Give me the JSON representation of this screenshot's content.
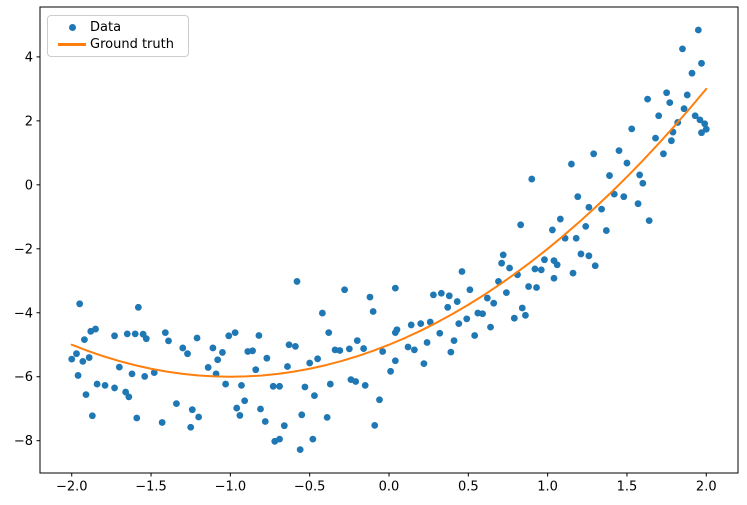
{
  "figure": {
    "background": "#ffffff",
    "frame_color": "#000000"
  },
  "legend": {
    "position": "upper left",
    "items": [
      {
        "label": "Data",
        "marker": "dot",
        "color": "#1f77b4"
      },
      {
        "label": "Ground truth",
        "marker": "line",
        "color": "#ff7f0e"
      }
    ]
  },
  "chart_data": {
    "type": "scatter",
    "title": "",
    "xlabel": "",
    "ylabel": "",
    "grid": false,
    "legend_position": "upper left",
    "xlim": [
      -2.2,
      2.2
    ],
    "ylim": [
      -9.01,
      5.56
    ],
    "xticks": {
      "values": [
        -2.0,
        -1.5,
        -1.0,
        -0.5,
        0.0,
        0.5,
        1.0,
        1.5,
        2.0
      ],
      "labels": [
        "−2.0",
        "−1.5",
        "−1.0",
        "−0.5",
        "0.0",
        "0.5",
        "1.0",
        "1.5",
        "2.0"
      ]
    },
    "yticks": {
      "values": [
        -8,
        -6,
        -4,
        -2,
        0,
        2,
        4
      ],
      "labels": [
        "−8",
        "−6",
        "−4",
        "−2",
        "0",
        "2",
        "4"
      ]
    },
    "series": [
      {
        "name": "Data",
        "type": "scatter",
        "color": "#1f77b4",
        "marker_radius": 3.4,
        "points": [
          [
            -2.0,
            -5.45
          ],
          [
            -1.97,
            -5.28
          ],
          [
            -1.96,
            -5.96
          ],
          [
            -1.95,
            -3.72
          ],
          [
            -1.93,
            -5.52
          ],
          [
            -1.92,
            -4.84
          ],
          [
            -1.91,
            -6.56
          ],
          [
            -1.89,
            -5.4
          ],
          [
            -1.88,
            -4.58
          ],
          [
            -1.87,
            -7.22
          ],
          [
            -1.85,
            -4.51
          ],
          [
            -1.84,
            -6.23
          ],
          [
            -1.79,
            -6.27
          ],
          [
            -1.73,
            -4.72
          ],
          [
            -1.73,
            -6.35
          ],
          [
            -1.7,
            -5.7
          ],
          [
            -1.66,
            -6.48
          ],
          [
            -1.65,
            -4.66
          ],
          [
            -1.64,
            -6.63
          ],
          [
            -1.62,
            -5.91
          ],
          [
            -1.6,
            -4.66
          ],
          [
            -1.59,
            -7.29
          ],
          [
            -1.58,
            -3.83
          ],
          [
            -1.55,
            -4.67
          ],
          [
            -1.54,
            -5.99
          ],
          [
            -1.53,
            -4.81
          ],
          [
            -1.48,
            -5.87
          ],
          [
            -1.43,
            -7.43
          ],
          [
            -1.41,
            -4.62
          ],
          [
            -1.39,
            -4.88
          ],
          [
            -1.34,
            -6.84
          ],
          [
            -1.3,
            -5.1
          ],
          [
            -1.27,
            -5.28
          ],
          [
            -1.25,
            -7.58
          ],
          [
            -1.24,
            -7.03
          ],
          [
            -1.21,
            -4.79
          ],
          [
            -1.2,
            -7.26
          ],
          [
            -1.14,
            -5.71
          ],
          [
            -1.11,
            -5.1
          ],
          [
            -1.09,
            -5.91
          ],
          [
            -1.08,
            -5.47
          ],
          [
            -1.05,
            -5.24
          ],
          [
            -1.03,
            -6.23
          ],
          [
            -1.01,
            -4.72
          ],
          [
            -0.97,
            -4.62
          ],
          [
            -0.96,
            -6.98
          ],
          [
            -0.94,
            -7.21
          ],
          [
            -0.93,
            -6.27
          ],
          [
            -0.91,
            -6.75
          ],
          [
            -0.89,
            -5.21
          ],
          [
            -0.86,
            -5.19
          ],
          [
            -0.84,
            -5.78
          ],
          [
            -0.82,
            -4.71
          ],
          [
            -0.81,
            -7.01
          ],
          [
            -0.78,
            -7.4
          ],
          [
            -0.77,
            -5.42
          ],
          [
            -0.73,
            -6.3
          ],
          [
            -0.72,
            -8.02
          ],
          [
            -0.69,
            -7.95
          ],
          [
            -0.69,
            -6.3
          ],
          [
            -0.66,
            -7.53
          ],
          [
            -0.64,
            -5.68
          ],
          [
            -0.63,
            -5.0
          ],
          [
            -0.59,
            -5.05
          ],
          [
            -0.58,
            -3.02
          ],
          [
            -0.56,
            -8.28
          ],
          [
            -0.55,
            -7.19
          ],
          [
            -0.53,
            -6.32
          ],
          [
            -0.5,
            -5.57
          ],
          [
            -0.48,
            -7.95
          ],
          [
            -0.47,
            -6.59
          ],
          [
            -0.45,
            -5.44
          ],
          [
            -0.42,
            -4.01
          ],
          [
            -0.39,
            -7.27
          ],
          [
            -0.38,
            -4.62
          ],
          [
            -0.37,
            -6.23
          ],
          [
            -0.34,
            -5.16
          ],
          [
            -0.31,
            -5.18
          ],
          [
            -0.28,
            -3.28
          ],
          [
            -0.25,
            -5.13
          ],
          [
            -0.24,
            -6.09
          ],
          [
            -0.21,
            -6.15
          ],
          [
            -0.2,
            -4.87
          ],
          [
            -0.16,
            -5.12
          ],
          [
            -0.15,
            -6.27
          ],
          [
            -0.12,
            -3.51
          ],
          [
            -0.1,
            -3.96
          ],
          [
            -0.09,
            -7.52
          ],
          [
            -0.06,
            -6.72
          ],
          [
            -0.04,
            -5.21
          ],
          [
            0.01,
            -5.83
          ],
          [
            0.04,
            -3.23
          ],
          [
            0.04,
            -4.62
          ],
          [
            0.04,
            -5.5
          ],
          [
            0.05,
            -4.53
          ],
          [
            0.12,
            -5.07
          ],
          [
            0.14,
            -4.38
          ],
          [
            0.16,
            -5.16
          ],
          [
            0.2,
            -4.34
          ],
          [
            0.22,
            -5.59
          ],
          [
            0.24,
            -4.93
          ],
          [
            0.26,
            -4.29
          ],
          [
            0.28,
            -3.44
          ],
          [
            0.32,
            -4.64
          ],
          [
            0.33,
            -3.39
          ],
          [
            0.37,
            -3.83
          ],
          [
            0.38,
            -3.47
          ],
          [
            0.39,
            -5.23
          ],
          [
            0.41,
            -4.87
          ],
          [
            0.43,
            -3.65
          ],
          [
            0.44,
            -4.34
          ],
          [
            0.46,
            -2.71
          ],
          [
            0.49,
            -4.19
          ],
          [
            0.51,
            -3.28
          ],
          [
            0.54,
            -4.71
          ],
          [
            0.56,
            -4.01
          ],
          [
            0.59,
            -4.03
          ],
          [
            0.62,
            -3.54
          ],
          [
            0.64,
            -4.45
          ],
          [
            0.66,
            -3.7
          ],
          [
            0.69,
            -3.02
          ],
          [
            0.71,
            -2.45
          ],
          [
            0.72,
            -2.19
          ],
          [
            0.74,
            -3.37
          ],
          [
            0.76,
            -2.6
          ],
          [
            0.79,
            -4.17
          ],
          [
            0.81,
            -2.81
          ],
          [
            0.83,
            -1.25
          ],
          [
            0.84,
            -3.85
          ],
          [
            0.86,
            -4.08
          ],
          [
            0.88,
            -3.18
          ],
          [
            0.9,
            0.18
          ],
          [
            0.92,
            -2.63
          ],
          [
            0.93,
            -3.21
          ],
          [
            0.96,
            -2.66
          ],
          [
            0.98,
            -2.34
          ],
          [
            1.03,
            -1.41
          ],
          [
            1.04,
            -2.37
          ],
          [
            1.04,
            -2.92
          ],
          [
            1.06,
            -2.5
          ],
          [
            1.08,
            -1.07
          ],
          [
            1.11,
            -1.67
          ],
          [
            1.15,
            0.65
          ],
          [
            1.16,
            -2.76
          ],
          [
            1.18,
            -1.67
          ],
          [
            1.19,
            -0.37
          ],
          [
            1.21,
            -2.16
          ],
          [
            1.24,
            -1.3
          ],
          [
            1.26,
            -0.7
          ],
          [
            1.26,
            -2.22
          ],
          [
            1.29,
            0.97
          ],
          [
            1.3,
            -2.53
          ],
          [
            1.34,
            -0.76
          ],
          [
            1.37,
            -1.43
          ],
          [
            1.39,
            0.29
          ],
          [
            1.42,
            -0.29
          ],
          [
            1.45,
            1.07
          ],
          [
            1.48,
            -0.37
          ],
          [
            1.5,
            0.68
          ],
          [
            1.53,
            1.75
          ],
          [
            1.57,
            -0.59
          ],
          [
            1.58,
            0.31
          ],
          [
            1.6,
            0.05
          ],
          [
            1.63,
            2.68
          ],
          [
            1.64,
            -1.12
          ],
          [
            1.68,
            1.46
          ],
          [
            1.7,
            2.16
          ],
          [
            1.73,
            0.97
          ],
          [
            1.75,
            2.88
          ],
          [
            1.77,
            2.57
          ],
          [
            1.78,
            1.38
          ],
          [
            1.79,
            1.65
          ],
          [
            1.82,
            1.95
          ],
          [
            1.85,
            4.25
          ],
          [
            1.86,
            2.38
          ],
          [
            1.88,
            2.81
          ],
          [
            1.91,
            3.49
          ],
          [
            1.93,
            2.16
          ],
          [
            1.95,
            4.84
          ],
          [
            1.96,
            2.03
          ],
          [
            1.97,
            3.8
          ],
          [
            1.97,
            1.63
          ],
          [
            1.99,
            1.91
          ],
          [
            2.0,
            1.74
          ]
        ]
      },
      {
        "name": "Ground truth",
        "type": "line",
        "color": "#ff7f0e",
        "line_width": 2,
        "equation": "y = x^2 + 2x - 5",
        "x": [
          -2.0,
          -1.9,
          -1.8,
          -1.7,
          -1.6,
          -1.5,
          -1.4,
          -1.3,
          -1.2,
          -1.1,
          -1.0,
          -0.9,
          -0.8,
          -0.7,
          -0.6,
          -0.5,
          -0.4,
          -0.3,
          -0.2,
          -0.1,
          0.0,
          0.1,
          0.2,
          0.3,
          0.4,
          0.5,
          0.6,
          0.7,
          0.8,
          0.9,
          1.0,
          1.1,
          1.2,
          1.3,
          1.4,
          1.5,
          1.6,
          1.7,
          1.8,
          1.9,
          2.0
        ],
        "y": [
          -5.0,
          -5.19,
          -5.36,
          -5.51,
          -5.64,
          -5.75,
          -5.84,
          -5.91,
          -5.96,
          -5.99,
          -6.0,
          -5.99,
          -5.96,
          -5.91,
          -5.84,
          -5.75,
          -5.64,
          -5.51,
          -5.36,
          -5.19,
          -5.0,
          -4.79,
          -4.56,
          -4.31,
          -4.04,
          -3.75,
          -3.44,
          -3.11,
          -2.76,
          -2.39,
          -2.0,
          -1.59,
          -1.16,
          -0.71,
          -0.24,
          0.25,
          0.76,
          1.29,
          1.84,
          2.41,
          3.0
        ]
      }
    ]
  }
}
